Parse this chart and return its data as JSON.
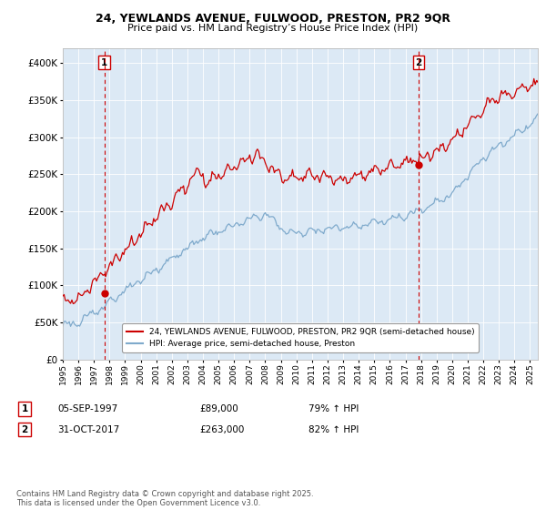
{
  "title_line1": "24, YEWLANDS AVENUE, FULWOOD, PRESTON, PR2 9QR",
  "title_line2": "Price paid vs. HM Land Registry’s House Price Index (HPI)",
  "legend_line1": "24, YEWLANDS AVENUE, FULWOOD, PRESTON, PR2 9QR (semi-detached house)",
  "legend_line2": "HPI: Average price, semi-detached house, Preston",
  "footnote": "Contains HM Land Registry data © Crown copyright and database right 2025.\nThis data is licensed under the Open Government Licence v3.0.",
  "marker1_date": "05-SEP-1997",
  "marker1_price": "£89,000",
  "marker1_hpi": "79% ↑ HPI",
  "marker2_date": "31-OCT-2017",
  "marker2_price": "£263,000",
  "marker2_hpi": "82% ↑ HPI",
  "ylim": [
    0,
    420000
  ],
  "yticks": [
    0,
    50000,
    100000,
    150000,
    200000,
    250000,
    300000,
    350000,
    400000
  ],
  "red_color": "#cc0000",
  "blue_color": "#7faacc",
  "dashed_color": "#cc0000",
  "plot_bg_color": "#dce9f5",
  "fig_bg_color": "#ffffff",
  "grid_color": "#ffffff",
  "sale1_x": 1997.67,
  "sale1_y": 89000,
  "sale2_x": 2017.83,
  "sale2_y": 263000,
  "xlim_left": 1995.0,
  "xlim_right": 2025.5
}
